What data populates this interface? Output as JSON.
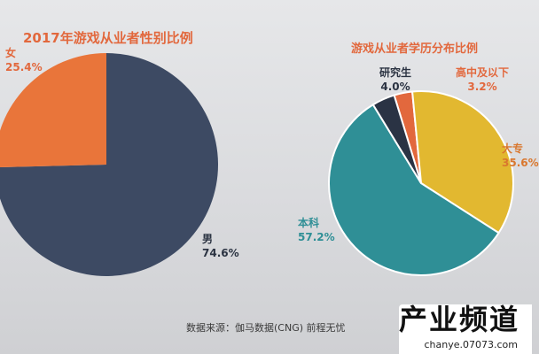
{
  "chart_data": [
    {
      "type": "pie",
      "title": "2017年游戏从业者性别比例",
      "slices": [
        {
          "label": "男",
          "value": 74.6,
          "display": "74.6%",
          "color": "#3d4a63"
        },
        {
          "label": "女",
          "value": 25.4,
          "display": "25.4%",
          "color": "#e9753a"
        }
      ]
    },
    {
      "type": "pie",
      "title": "游戏从业者学历分布比例",
      "slices": [
        {
          "label": "高中及以下",
          "value": 3.2,
          "display": "3.2%",
          "color": "#e2683d"
        },
        {
          "label": "大专",
          "value": 35.6,
          "display": "35.6%",
          "color": "#e2b830"
        },
        {
          "label": "本科",
          "value": 57.2,
          "display": "57.2%",
          "color": "#2f8f96"
        },
        {
          "label": "研究生",
          "value": 4.0,
          "display": "4.0%",
          "color": "#2a3344"
        }
      ]
    }
  ],
  "source": "数据来源：伽马数据(CNG) 前程无忧",
  "watermark": {
    "main": "产业频道",
    "sub": "chanye.07073.com"
  }
}
